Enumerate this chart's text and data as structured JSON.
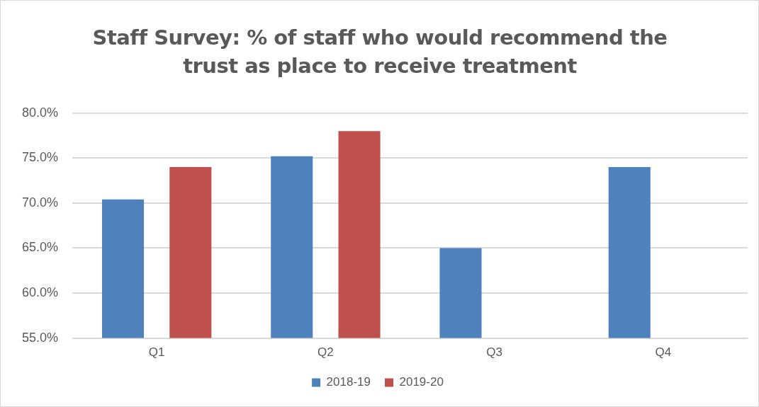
{
  "chart_data": {
    "type": "bar",
    "title": "Staff Survey: % of staff who would recommend the trust as place to receive treatment",
    "categories": [
      "Q1",
      "Q2",
      "Q3",
      "Q4"
    ],
    "series": [
      {
        "name": "2018-19",
        "color": "#4f81bd",
        "values": [
          70.4,
          75.2,
          65.0,
          74.0
        ]
      },
      {
        "name": "2019-20",
        "color": "#c0504d",
        "values": [
          74.0,
          78.0,
          null,
          null
        ]
      }
    ],
    "ylim": [
      55,
      80
    ],
    "yticks": [
      {
        "value": 55,
        "label": "55.0%"
      },
      {
        "value": 60,
        "label": "60.0%"
      },
      {
        "value": 65,
        "label": "65.0%"
      },
      {
        "value": 70,
        "label": "70.0%"
      },
      {
        "value": 75,
        "label": "75.0%"
      },
      {
        "value": 80,
        "label": "80.0%"
      }
    ],
    "grid": "y",
    "legend": "bottom"
  }
}
